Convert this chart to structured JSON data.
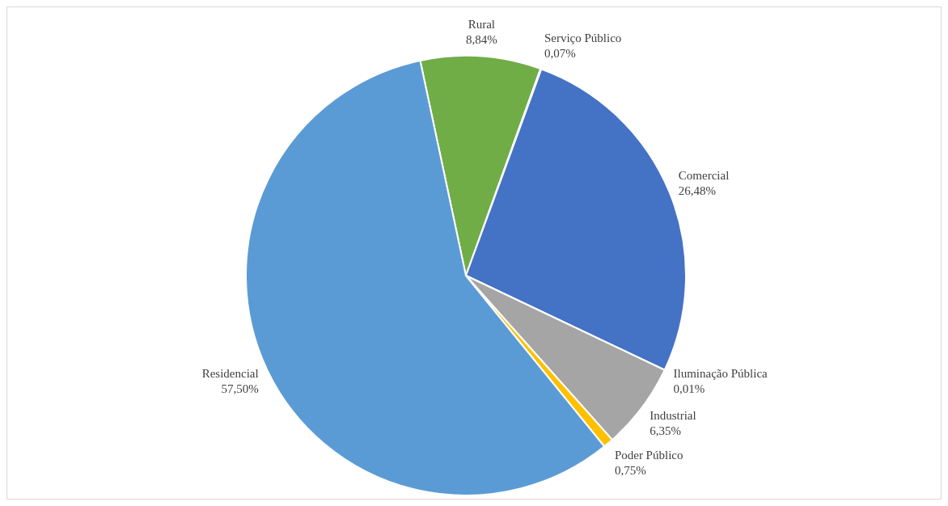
{
  "chart_data": {
    "type": "pie",
    "categories": [
      "Rural",
      "Serviço Público",
      "Comercial",
      "Iluminação Pública",
      "Industrial",
      "Poder Público",
      "Residencial"
    ],
    "values": [
      8.84,
      0.07,
      26.48,
      0.01,
      6.35,
      0.75,
      57.5
    ],
    "colors": [
      "#70ad47",
      "#264478",
      "#4472c4",
      "#9e480e",
      "#a5a5a5",
      "#ffc000",
      "#5b9bd5"
    ],
    "value_labels": [
      "8,84%",
      "0,07%",
      "26,48%",
      "0,01%",
      "6,35%",
      "0,75%",
      "57,50%"
    ]
  }
}
